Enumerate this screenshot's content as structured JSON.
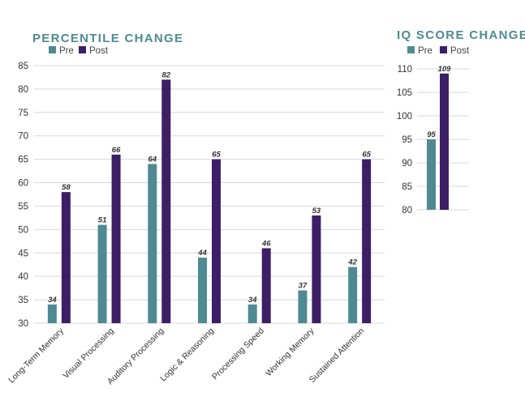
{
  "colors": {
    "pre": "#4f8a93",
    "post": "#3d1f66",
    "title": "#4f8a93",
    "grid": "#d8d8d8"
  },
  "chart_data": [
    {
      "type": "bar",
      "title": "PERCENTILE CHANGE",
      "xlabel": "",
      "ylabel": "",
      "ylim": [
        30,
        85
      ],
      "yticks": [
        30,
        35,
        40,
        45,
        50,
        55,
        60,
        65,
        70,
        75,
        80,
        85
      ],
      "grid": true,
      "legend": "top-left",
      "categories": [
        "Long-Term Memory",
        "Visual Processing",
        "Auditory Processing",
        "Logic & Reasoning",
        "Processing Speed",
        "Working Memory",
        "Sustained Attention"
      ],
      "series": [
        {
          "name": "Pre",
          "values": [
            34,
            51,
            64,
            44,
            34,
            37,
            42
          ]
        },
        {
          "name": "Post",
          "values": [
            58,
            66,
            82,
            65,
            46,
            53,
            65
          ]
        }
      ]
    },
    {
      "type": "bar",
      "title": "IQ SCORE CHANGE",
      "xlabel": "",
      "ylabel": "",
      "ylim": [
        80,
        110
      ],
      "yticks": [
        80,
        85,
        90,
        95,
        100,
        105,
        110
      ],
      "grid": true,
      "legend": "top-left",
      "categories": [
        ""
      ],
      "series": [
        {
          "name": "Pre",
          "values": [
            95
          ]
        },
        {
          "name": "Post",
          "values": [
            109
          ]
        }
      ]
    }
  ]
}
